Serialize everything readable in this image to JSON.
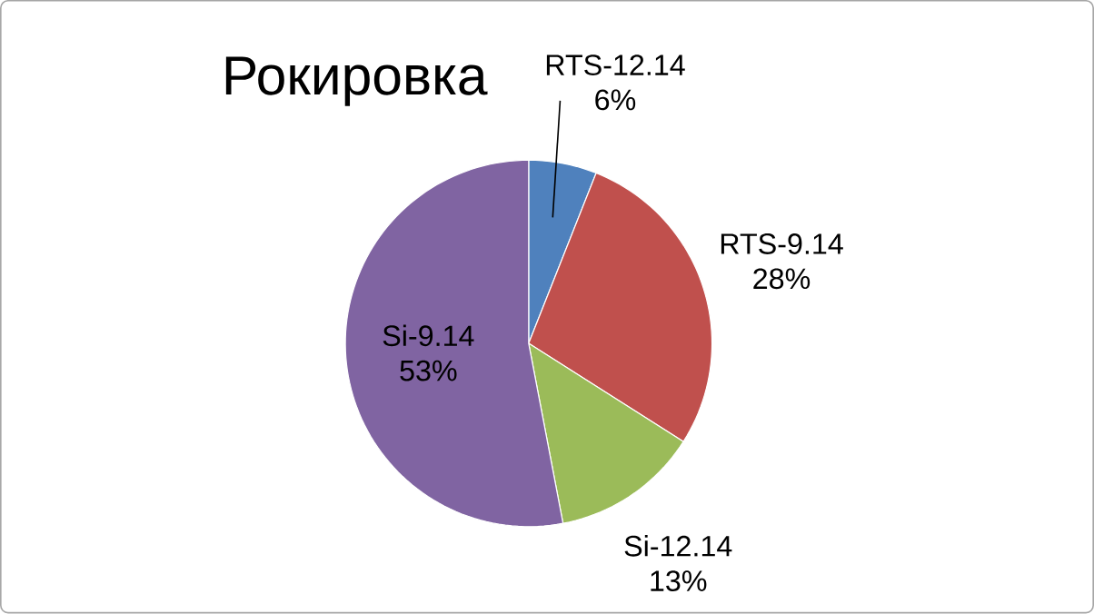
{
  "chart_data": {
    "type": "pie",
    "title": "Рокировка",
    "categories": [
      "RTS-12.14",
      "RTS-9.14",
      "Si-12.14",
      "Si-9.14"
    ],
    "values": [
      6,
      28,
      13,
      53
    ],
    "value_labels": [
      "6%",
      "28%",
      "13%",
      "53%"
    ],
    "colors": [
      "#4f81bd",
      "#c0504d",
      "#9bbb59",
      "#8064a2"
    ]
  }
}
